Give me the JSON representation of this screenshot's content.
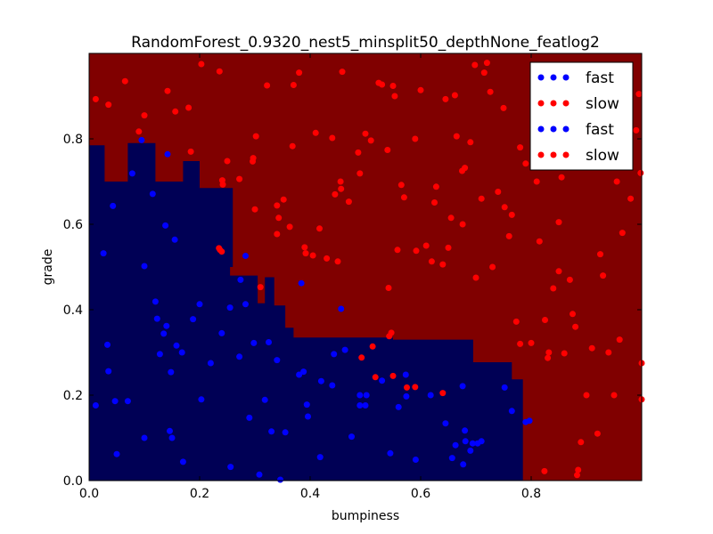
{
  "chart_data": {
    "type": "scatter",
    "title": "RandomForest_0.9320_nest5_minsplit50_depthNone_featlog2",
    "xlabel": "bumpiness",
    "ylabel": "grade",
    "xlim": [
      0,
      1
    ],
    "ylim": [
      0,
      1
    ],
    "xticks": [
      "0.0",
      "0.2",
      "0.4",
      "0.6",
      "0.8"
    ],
    "yticks": [
      "0.0",
      "0.2",
      "0.4",
      "0.6",
      "0.8"
    ],
    "grid": false,
    "legend_position": "top-right",
    "background": {
      "colors": {
        "fast": "#000055",
        "slow": "#800000"
      },
      "fast_region_polygon": [
        [
          0.0,
          0.0
        ],
        [
          0.785,
          0.0
        ],
        [
          0.785,
          0.237
        ],
        [
          0.765,
          0.237
        ],
        [
          0.765,
          0.277
        ],
        [
          0.695,
          0.277
        ],
        [
          0.695,
          0.33
        ],
        [
          0.55,
          0.33
        ],
        [
          0.55,
          0.335
        ],
        [
          0.39,
          0.335
        ],
        [
          0.39,
          0.335
        ],
        [
          0.37,
          0.335
        ],
        [
          0.37,
          0.358
        ],
        [
          0.355,
          0.358
        ],
        [
          0.355,
          0.41
        ],
        [
          0.335,
          0.41
        ],
        [
          0.335,
          0.476
        ],
        [
          0.318,
          0.476
        ],
        [
          0.318,
          0.415
        ],
        [
          0.305,
          0.415
        ],
        [
          0.305,
          0.48
        ],
        [
          0.255,
          0.48
        ],
        [
          0.255,
          0.5
        ],
        [
          0.26,
          0.5
        ],
        [
          0.26,
          0.685
        ],
        [
          0.2,
          0.685
        ],
        [
          0.2,
          0.748
        ],
        [
          0.17,
          0.748
        ],
        [
          0.17,
          0.7
        ],
        [
          0.12,
          0.7
        ],
        [
          0.12,
          0.79
        ],
        [
          0.07,
          0.79
        ],
        [
          0.07,
          0.7
        ],
        [
          0.028,
          0.7
        ],
        [
          0.028,
          0.785
        ],
        [
          0.0,
          0.785
        ]
      ]
    },
    "series": [
      {
        "name": "fast",
        "color": "#0000ff",
        "points": [
          [
            0.012,
            0.176
          ],
          [
            0.026,
            0.532
          ],
          [
            0.033,
            0.318
          ],
          [
            0.035,
            0.256
          ],
          [
            0.043,
            0.643
          ],
          [
            0.047,
            0.186
          ],
          [
            0.05,
            0.062
          ],
          [
            0.07,
            0.186
          ],
          [
            0.078,
            0.719
          ],
          [
            0.095,
            0.797
          ],
          [
            0.1,
            0.1
          ],
          [
            0.1,
            0.502
          ],
          [
            0.115,
            0.671
          ],
          [
            0.12,
            0.419
          ],
          [
            0.123,
            0.379
          ],
          [
            0.128,
            0.296
          ],
          [
            0.135,
            0.344
          ],
          [
            0.138,
            0.597
          ],
          [
            0.14,
            0.362
          ],
          [
            0.142,
            0.764
          ],
          [
            0.146,
            0.116
          ],
          [
            0.148,
            0.254
          ],
          [
            0.15,
            0.1
          ],
          [
            0.155,
            0.564
          ],
          [
            0.158,
            0.316
          ],
          [
            0.168,
            0.3
          ],
          [
            0.17,
            0.044
          ],
          [
            0.188,
            0.378
          ],
          [
            0.2,
            0.413
          ],
          [
            0.203,
            0.19
          ],
          [
            0.22,
            0.275
          ],
          [
            0.24,
            0.345
          ],
          [
            0.255,
            0.405
          ],
          [
            0.256,
            0.032
          ],
          [
            0.272,
            0.29
          ],
          [
            0.274,
            0.47
          ],
          [
            0.283,
            0.413
          ],
          [
            0.283,
            0.526
          ],
          [
            0.29,
            0.147
          ],
          [
            0.298,
            0.322
          ],
          [
            0.308,
            0.014
          ],
          [
            0.318,
            0.189
          ],
          [
            0.325,
            0.324
          ],
          [
            0.33,
            0.115
          ],
          [
            0.34,
            0.282
          ],
          [
            0.346,
            0.002
          ],
          [
            0.355,
            0.113
          ],
          [
            0.38,
            0.248
          ],
          [
            0.384,
            0.462
          ],
          [
            0.388,
            0.255
          ],
          [
            0.394,
            0.178
          ],
          [
            0.396,
            0.15
          ],
          [
            0.418,
            0.055
          ],
          [
            0.42,
            0.233
          ],
          [
            0.44,
            0.223
          ],
          [
            0.443,
            0.296
          ],
          [
            0.456,
            0.402
          ],
          [
            0.463,
            0.306
          ],
          [
            0.475,
            0.103
          ],
          [
            0.49,
            0.2
          ],
          [
            0.49,
            0.176
          ],
          [
            0.5,
            0.176
          ],
          [
            0.502,
            0.2
          ],
          [
            0.53,
            0.234
          ],
          [
            0.545,
            0.064
          ],
          [
            0.56,
            0.172
          ],
          [
            0.573,
            0.248
          ],
          [
            0.574,
            0.197
          ],
          [
            0.591,
            0.049
          ],
          [
            0.618,
            0.2
          ],
          [
            0.645,
            0.134
          ],
          [
            0.657,
            0.053
          ],
          [
            0.663,
            0.083
          ],
          [
            0.676,
            0.221
          ],
          [
            0.677,
            0.038
          ],
          [
            0.68,
            0.117
          ],
          [
            0.681,
            0.092
          ],
          [
            0.69,
            0.07
          ],
          [
            0.694,
            0.087
          ],
          [
            0.703,
            0.087
          ],
          [
            0.71,
            0.092
          ],
          [
            0.752,
            0.218
          ],
          [
            0.765,
            0.163
          ],
          [
            0.79,
            0.137
          ],
          [
            0.797,
            0.14
          ]
        ]
      },
      {
        "name": "slow",
        "color": "#ff0000",
        "points": [
          [
            0.012,
            0.893
          ],
          [
            0.035,
            0.88
          ],
          [
            0.065,
            0.935
          ],
          [
            0.09,
            0.817
          ],
          [
            0.1,
            0.855
          ],
          [
            0.142,
            0.912
          ],
          [
            0.156,
            0.864
          ],
          [
            0.18,
            0.873
          ],
          [
            0.184,
            0.77
          ],
          [
            0.203,
            0.975
          ],
          [
            0.236,
            0.958
          ],
          [
            0.235,
            0.544
          ],
          [
            0.237,
            0.54
          ],
          [
            0.24,
            0.536
          ],
          [
            0.241,
            0.703
          ],
          [
            0.242,
            0.693
          ],
          [
            0.25,
            0.748
          ],
          [
            0.272,
            0.706
          ],
          [
            0.296,
            0.747
          ],
          [
            0.297,
            0.755
          ],
          [
            0.3,
            0.635
          ],
          [
            0.302,
            0.806
          ],
          [
            0.31,
            0.453
          ],
          [
            0.322,
            0.925
          ],
          [
            0.34,
            0.644
          ],
          [
            0.343,
            0.615
          ],
          [
            0.34,
            0.577
          ],
          [
            0.352,
            0.658
          ],
          [
            0.363,
            0.594
          ],
          [
            0.368,
            0.783
          ],
          [
            0.37,
            0.926
          ],
          [
            0.38,
            0.955
          ],
          [
            0.39,
            0.546
          ],
          [
            0.392,
            0.532
          ],
          [
            0.405,
            0.527
          ],
          [
            0.41,
            0.814
          ],
          [
            0.417,
            0.59
          ],
          [
            0.43,
            0.52
          ],
          [
            0.44,
            0.802
          ],
          [
            0.445,
            0.67
          ],
          [
            0.45,
            0.513
          ],
          [
            0.455,
            0.7
          ],
          [
            0.456,
            0.683
          ],
          [
            0.458,
            0.957
          ],
          [
            0.47,
            0.653
          ],
          [
            0.487,
            0.768
          ],
          [
            0.49,
            0.719
          ],
          [
            0.493,
            0.288
          ],
          [
            0.5,
            0.812
          ],
          [
            0.51,
            0.796
          ],
          [
            0.513,
            0.314
          ],
          [
            0.518,
            0.242
          ],
          [
            0.524,
            0.931
          ],
          [
            0.53,
            0.927
          ],
          [
            0.54,
            0.774
          ],
          [
            0.542,
            0.451
          ],
          [
            0.543,
            0.338
          ],
          [
            0.547,
            0.346
          ],
          [
            0.55,
            0.924
          ],
          [
            0.55,
            0.245
          ],
          [
            0.553,
            0.9
          ],
          [
            0.558,
            0.54
          ],
          [
            0.565,
            0.692
          ],
          [
            0.57,
            0.663
          ],
          [
            0.575,
            0.218
          ],
          [
            0.59,
            0.219
          ],
          [
            0.59,
            0.8
          ],
          [
            0.592,
            0.538
          ],
          [
            0.6,
            0.914
          ],
          [
            0.61,
            0.55
          ],
          [
            0.625,
            0.651
          ],
          [
            0.62,
            0.513
          ],
          [
            0.628,
            0.688
          ],
          [
            0.64,
            0.506
          ],
          [
            0.64,
            0.205
          ],
          [
            0.645,
            0.893
          ],
          [
            0.65,
            0.545
          ],
          [
            0.655,
            0.615
          ],
          [
            0.662,
            0.902
          ],
          [
            0.665,
            0.806
          ],
          [
            0.675,
            0.725
          ],
          [
            0.676,
            0.6
          ],
          [
            0.68,
            0.732
          ],
          [
            0.69,
            0.792
          ],
          [
            0.698,
            0.973
          ],
          [
            0.7,
            0.475
          ],
          [
            0.71,
            0.66
          ],
          [
            0.715,
            0.955
          ],
          [
            0.72,
            0.978
          ],
          [
            0.726,
            0.91
          ],
          [
            0.73,
            0.5
          ],
          [
            0.74,
            0.676
          ],
          [
            0.75,
            0.872
          ],
          [
            0.752,
            0.64
          ],
          [
            0.76,
            0.572
          ],
          [
            0.765,
            0.622
          ],
          [
            0.773,
            0.372
          ],
          [
            0.78,
            0.78
          ],
          [
            0.78,
            0.32
          ],
          [
            0.79,
            0.742
          ],
          [
            0.8,
            0.322
          ],
          [
            0.81,
            0.7
          ],
          [
            0.815,
            0.56
          ],
          [
            0.824,
            0.022
          ],
          [
            0.825,
            0.376
          ],
          [
            0.83,
            0.287
          ],
          [
            0.832,
            0.3
          ],
          [
            0.84,
            0.45
          ],
          [
            0.85,
            0.49
          ],
          [
            0.85,
            0.605
          ],
          [
            0.855,
            0.71
          ],
          [
            0.86,
            0.298
          ],
          [
            0.87,
            0.47
          ],
          [
            0.875,
            0.39
          ],
          [
            0.88,
            0.36
          ],
          [
            0.883,
            0.013
          ],
          [
            0.885,
            0.025
          ],
          [
            0.89,
            0.09
          ],
          [
            0.9,
            0.2
          ],
          [
            0.91,
            0.31
          ],
          [
            0.92,
            0.11
          ],
          [
            0.925,
            0.53
          ],
          [
            0.93,
            0.48
          ],
          [
            0.94,
            0.3
          ],
          [
            0.95,
            0.2
          ],
          [
            0.955,
            0.7
          ],
          [
            0.96,
            0.33
          ],
          [
            0.965,
            0.58
          ],
          [
            0.97,
            0.75
          ],
          [
            0.98,
            0.66
          ],
          [
            0.99,
            0.82
          ],
          [
            0.995,
            0.905
          ],
          [
            0.998,
            0.72
          ],
          [
            1.0,
            0.19
          ],
          [
            1.0,
            0.275
          ]
        ]
      }
    ],
    "legend": {
      "entries": [
        {
          "label": "fast",
          "color": "#0000ff"
        },
        {
          "label": "slow",
          "color": "#ff0000"
        },
        {
          "label": "fast",
          "color": "#0000ff"
        },
        {
          "label": "slow",
          "color": "#ff0000"
        }
      ]
    }
  }
}
